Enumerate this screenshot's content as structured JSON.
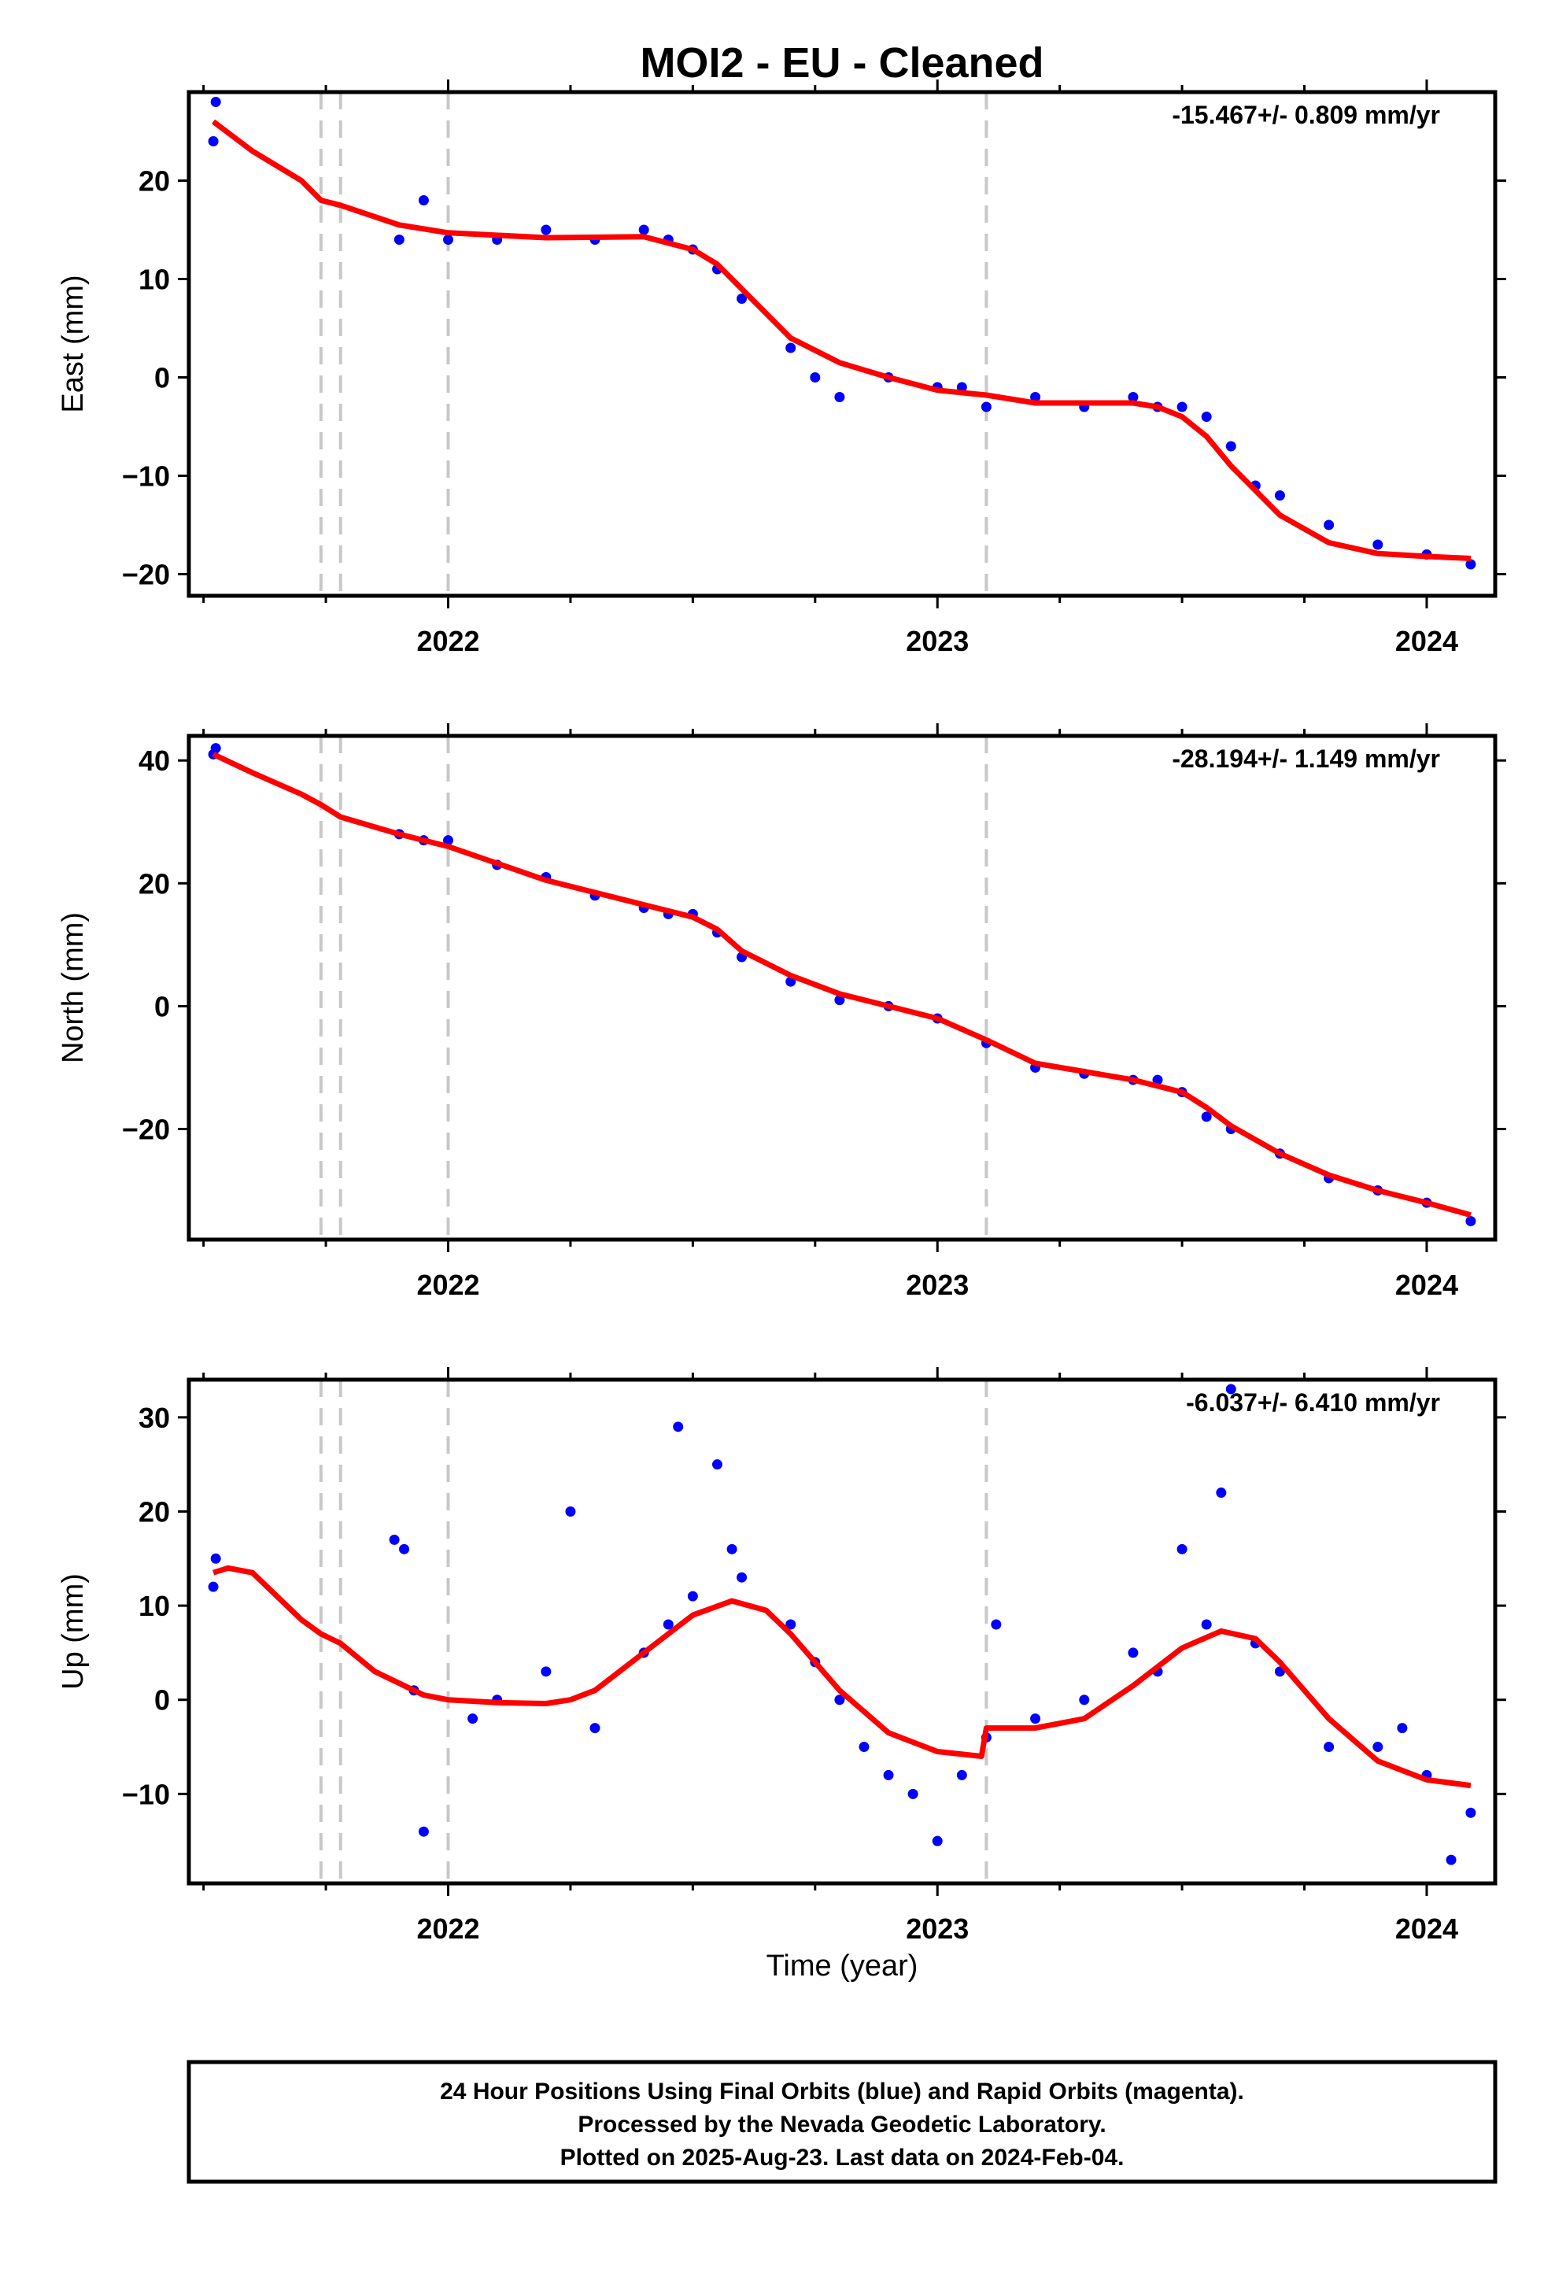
{
  "title": "MOI2  - EU - Cleaned",
  "xlabel": "Time (year)",
  "colors": {
    "points": "#0000ff",
    "fit": "#ff0000",
    "breaks": "#c8c8c8",
    "frame": "#000000"
  },
  "footer": {
    "line1": "24 Hour Positions Using Final Orbits (blue) and Rapid Orbits (magenta).",
    "line2": "Processed by the Nevada Geodetic Laboratory.",
    "line3": "Plotted on 2025-Aug-23. Last data on 2024-Feb-04."
  },
  "chart_data": [
    {
      "type": "scatter",
      "component": "east",
      "ylabel": "East (mm)",
      "rate_text": "-15.467+/- 0.809 mm/yr",
      "xlim": [
        2021.47,
        2024.14
      ],
      "ylim": [
        -22.2,
        29
      ],
      "xticks": [
        2022,
        2023,
        2024
      ],
      "yticks": [
        -20,
        -10,
        0,
        10,
        20
      ],
      "grid": false,
      "break_lines": [
        2021.74,
        2021.78,
        2022.0,
        2023.1
      ],
      "series": [
        {
          "kind": "points",
          "color": "#0000ff",
          "x": [
            2021.52,
            2021.525,
            2021.9,
            2021.95,
            2022.0,
            2022.1,
            2022.2,
            2022.3,
            2022.4,
            2022.45,
            2022.5,
            2022.55,
            2022.6,
            2022.7,
            2022.75,
            2022.8,
            2022.9,
            2023.0,
            2023.05,
            2023.1,
            2023.2,
            2023.3,
            2023.4,
            2023.45,
            2023.5,
            2023.55,
            2023.6,
            2023.65,
            2023.7,
            2023.8,
            2023.9,
            2024.0,
            2024.09
          ],
          "y": [
            24,
            28,
            14,
            18,
            14,
            14,
            15,
            14,
            15,
            14,
            13,
            11,
            8,
            3,
            0,
            -2,
            0,
            -1,
            -1,
            -3,
            -2,
            -3,
            -2,
            -3,
            -3,
            -4,
            -7,
            -11,
            -12,
            -15,
            -17,
            -18,
            -19
          ]
        },
        {
          "kind": "fit",
          "color": "#ff0000",
          "x": [
            2021.52,
            2021.6,
            2021.7,
            2021.74,
            2021.78,
            2021.9,
            2022.0,
            2022.2,
            2022.4,
            2022.5,
            2022.55,
            2022.6,
            2022.7,
            2022.8,
            2022.9,
            2023.0,
            2023.1,
            2023.2,
            2023.4,
            2023.45,
            2023.5,
            2023.55,
            2023.6,
            2023.7,
            2023.8,
            2023.9,
            2024.0,
            2024.09
          ],
          "y": [
            26,
            23,
            20,
            18,
            17.5,
            15.5,
            14.7,
            14.2,
            14.3,
            13,
            11.5,
            9,
            4,
            1.5,
            0,
            -1.3,
            -1.8,
            -2.6,
            -2.6,
            -3,
            -4,
            -6,
            -9,
            -14,
            -16.8,
            -17.9,
            -18.2,
            -18.4
          ]
        }
      ]
    },
    {
      "type": "scatter",
      "component": "north",
      "ylabel": "North (mm)",
      "rate_text": "-28.194+/- 1.149 mm/yr",
      "xlim": [
        2021.47,
        2024.14
      ],
      "ylim": [
        -38,
        44
      ],
      "xticks": [
        2022,
        2023,
        2024
      ],
      "yticks": [
        -20,
        0,
        20,
        40
      ],
      "grid": false,
      "break_lines": [
        2021.74,
        2021.78,
        2022.0,
        2023.1
      ],
      "series": [
        {
          "kind": "points",
          "color": "#0000ff",
          "x": [
            2021.52,
            2021.525,
            2021.9,
            2021.95,
            2022.0,
            2022.1,
            2022.2,
            2022.3,
            2022.4,
            2022.45,
            2022.5,
            2022.55,
            2022.6,
            2022.7,
            2022.8,
            2022.9,
            2023.0,
            2023.1,
            2023.2,
            2023.3,
            2023.4,
            2023.45,
            2023.5,
            2023.55,
            2023.6,
            2023.7,
            2023.8,
            2023.9,
            2024.0,
            2024.09
          ],
          "y": [
            41,
            42,
            28,
            27,
            27,
            23,
            21,
            18,
            16,
            15,
            15,
            12,
            8,
            4,
            1,
            0,
            -2,
            -6,
            -10,
            -11,
            -12,
            -12,
            -14,
            -18,
            -20,
            -24,
            -28,
            -30,
            -32,
            -35
          ]
        },
        {
          "kind": "fit",
          "color": "#ff0000",
          "x": [
            2021.52,
            2021.6,
            2021.7,
            2021.74,
            2021.78,
            2021.9,
            2022.0,
            2022.2,
            2022.4,
            2022.5,
            2022.55,
            2022.6,
            2022.7,
            2022.8,
            2022.9,
            2023.0,
            2023.1,
            2023.2,
            2023.4,
            2023.5,
            2023.55,
            2023.6,
            2023.7,
            2023.8,
            2023.9,
            2024.0,
            2024.09
          ],
          "y": [
            41,
            38,
            34.5,
            32.8,
            30.8,
            28,
            26,
            20.5,
            16.5,
            14.5,
            12.5,
            9,
            5,
            2,
            0,
            -2,
            -5.5,
            -9.3,
            -12,
            -14,
            -16.5,
            -19.5,
            -24,
            -27.5,
            -30,
            -32,
            -34
          ]
        }
      ]
    },
    {
      "type": "scatter",
      "component": "up",
      "ylabel": "Up (mm)",
      "rate_text": "-6.037+/- 6.410 mm/yr",
      "xlim": [
        2021.47,
        2024.14
      ],
      "ylim": [
        -19.5,
        34
      ],
      "xticks": [
        2022,
        2023,
        2024
      ],
      "yticks": [
        -10,
        0,
        10,
        20,
        30
      ],
      "grid": false,
      "break_lines": [
        2021.74,
        2021.78,
        2022.0,
        2023.1
      ],
      "series": [
        {
          "kind": "points",
          "color": "#0000ff",
          "x": [
            2021.52,
            2021.525,
            2021.89,
            2021.91,
            2021.93,
            2021.95,
            2022.05,
            2022.1,
            2022.2,
            2022.25,
            2022.3,
            2022.4,
            2022.45,
            2022.47,
            2022.5,
            2022.55,
            2022.58,
            2022.6,
            2022.7,
            2022.75,
            2022.8,
            2022.85,
            2022.9,
            2022.95,
            2023.0,
            2023.05,
            2023.1,
            2023.12,
            2023.2,
            2023.3,
            2023.4,
            2023.45,
            2023.5,
            2023.55,
            2023.58,
            2023.6,
            2023.65,
            2023.7,
            2023.8,
            2023.9,
            2023.95,
            2024.0,
            2024.05,
            2024.09
          ],
          "y": [
            12,
            15,
            17,
            16,
            1,
            -14,
            -2,
            0,
            3,
            20,
            -3,
            5,
            8,
            29,
            11,
            25,
            16,
            13,
            8,
            4,
            0,
            -5,
            -8,
            -10,
            -15,
            -8,
            -4,
            8,
            -2,
            0,
            5,
            3,
            16,
            8,
            22,
            33,
            6,
            3,
            -5,
            -5,
            -3,
            -8,
            -17,
            -12
          ]
        },
        {
          "kind": "fit",
          "color": "#ff0000",
          "x": [
            2021.52,
            2021.55,
            2021.6,
            2021.65,
            2021.7,
            2021.74,
            2021.78,
            2021.85,
            2021.95,
            2022.0,
            2022.1,
            2022.2,
            2022.25,
            2022.3,
            2022.4,
            2022.5,
            2022.58,
            2022.65,
            2022.7,
            2022.8,
            2022.9,
            2023.0,
            2023.09,
            2023.1,
            2023.2,
            2023.3,
            2023.4,
            2023.5,
            2023.58,
            2023.65,
            2023.7,
            2023.8,
            2023.9,
            2024.0,
            2024.09
          ],
          "y": [
            13.5,
            14,
            13.5,
            11,
            8.5,
            7,
            6,
            3,
            0.5,
            0,
            -0.3,
            -0.4,
            0,
            1,
            5,
            9,
            10.5,
            9.5,
            7,
            1,
            -3.5,
            -5.5,
            -6,
            -3,
            -3,
            -2,
            1.5,
            5.5,
            7.3,
            6.5,
            4,
            -2,
            -6.5,
            -8.5,
            -9.1
          ]
        }
      ]
    }
  ]
}
